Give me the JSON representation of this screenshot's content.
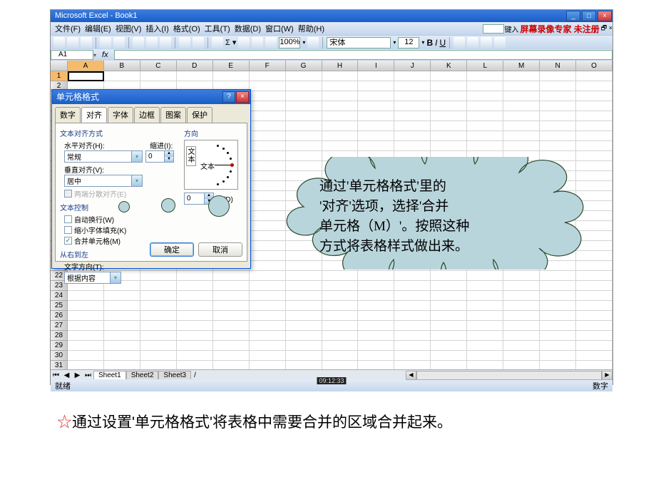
{
  "window": {
    "title": "Microsoft Excel - Book1",
    "menus": [
      "文件(F)",
      "编辑(E)",
      "视图(V)",
      "插入(I)",
      "格式(O)",
      "工具(T)",
      "数据(D)",
      "窗口(W)",
      "帮助(H)"
    ],
    "input_label": "键入",
    "brand_red": "屏幕录像专家 未注册",
    "zoom": "100%",
    "font_name": "宋体",
    "font_size": "12",
    "namebox": "A1",
    "columns": [
      "A",
      "B",
      "C",
      "D",
      "E",
      "F",
      "G",
      "H",
      "I",
      "J",
      "K",
      "L",
      "M",
      "N",
      "O"
    ],
    "sheet_tabs": [
      "Sheet1",
      "Sheet2",
      "Sheet3"
    ],
    "status_left": "就绪",
    "status_right": "数字",
    "clock": "09:12:33"
  },
  "dialog": {
    "title": "单元格格式",
    "tabs": [
      "数字",
      "对齐",
      "字体",
      "边框",
      "图案",
      "保护"
    ],
    "group_align": "文本对齐方式",
    "h_align_label": "水平对齐(H):",
    "h_align_value": "常规",
    "indent_label": "缩进(I):",
    "indent_value": "0",
    "v_align_label": "垂直对齐(V):",
    "v_align_value": "居中",
    "justify_label": "两端分散对齐(E)",
    "group_ctrl": "文本控制",
    "wrap_label": "自动换行(W)",
    "shrink_label": "缩小字体填充(K)",
    "merge_label": "合并单元格(M)",
    "group_rtl": "从右到左",
    "textdir_label": "文字方向(T):",
    "textdir_value": "根据内容",
    "group_dir": "方向",
    "deg_value": "0",
    "deg_unit": "度(D)",
    "vtext": "文本",
    "arc_label": "文本",
    "ok": "确定",
    "cancel": "取消"
  },
  "cloud": {
    "l1": "通过'单元格格式'里的",
    "l2": "'对齐'选项，选择'合并",
    "l3": "单元格（M）'。按照这种",
    "l4": "方式将表格样式做出来。"
  },
  "note": {
    "star": "☆",
    "text": "通过设置'单元格格式'将表格中需要合并的区域合并起来。"
  }
}
